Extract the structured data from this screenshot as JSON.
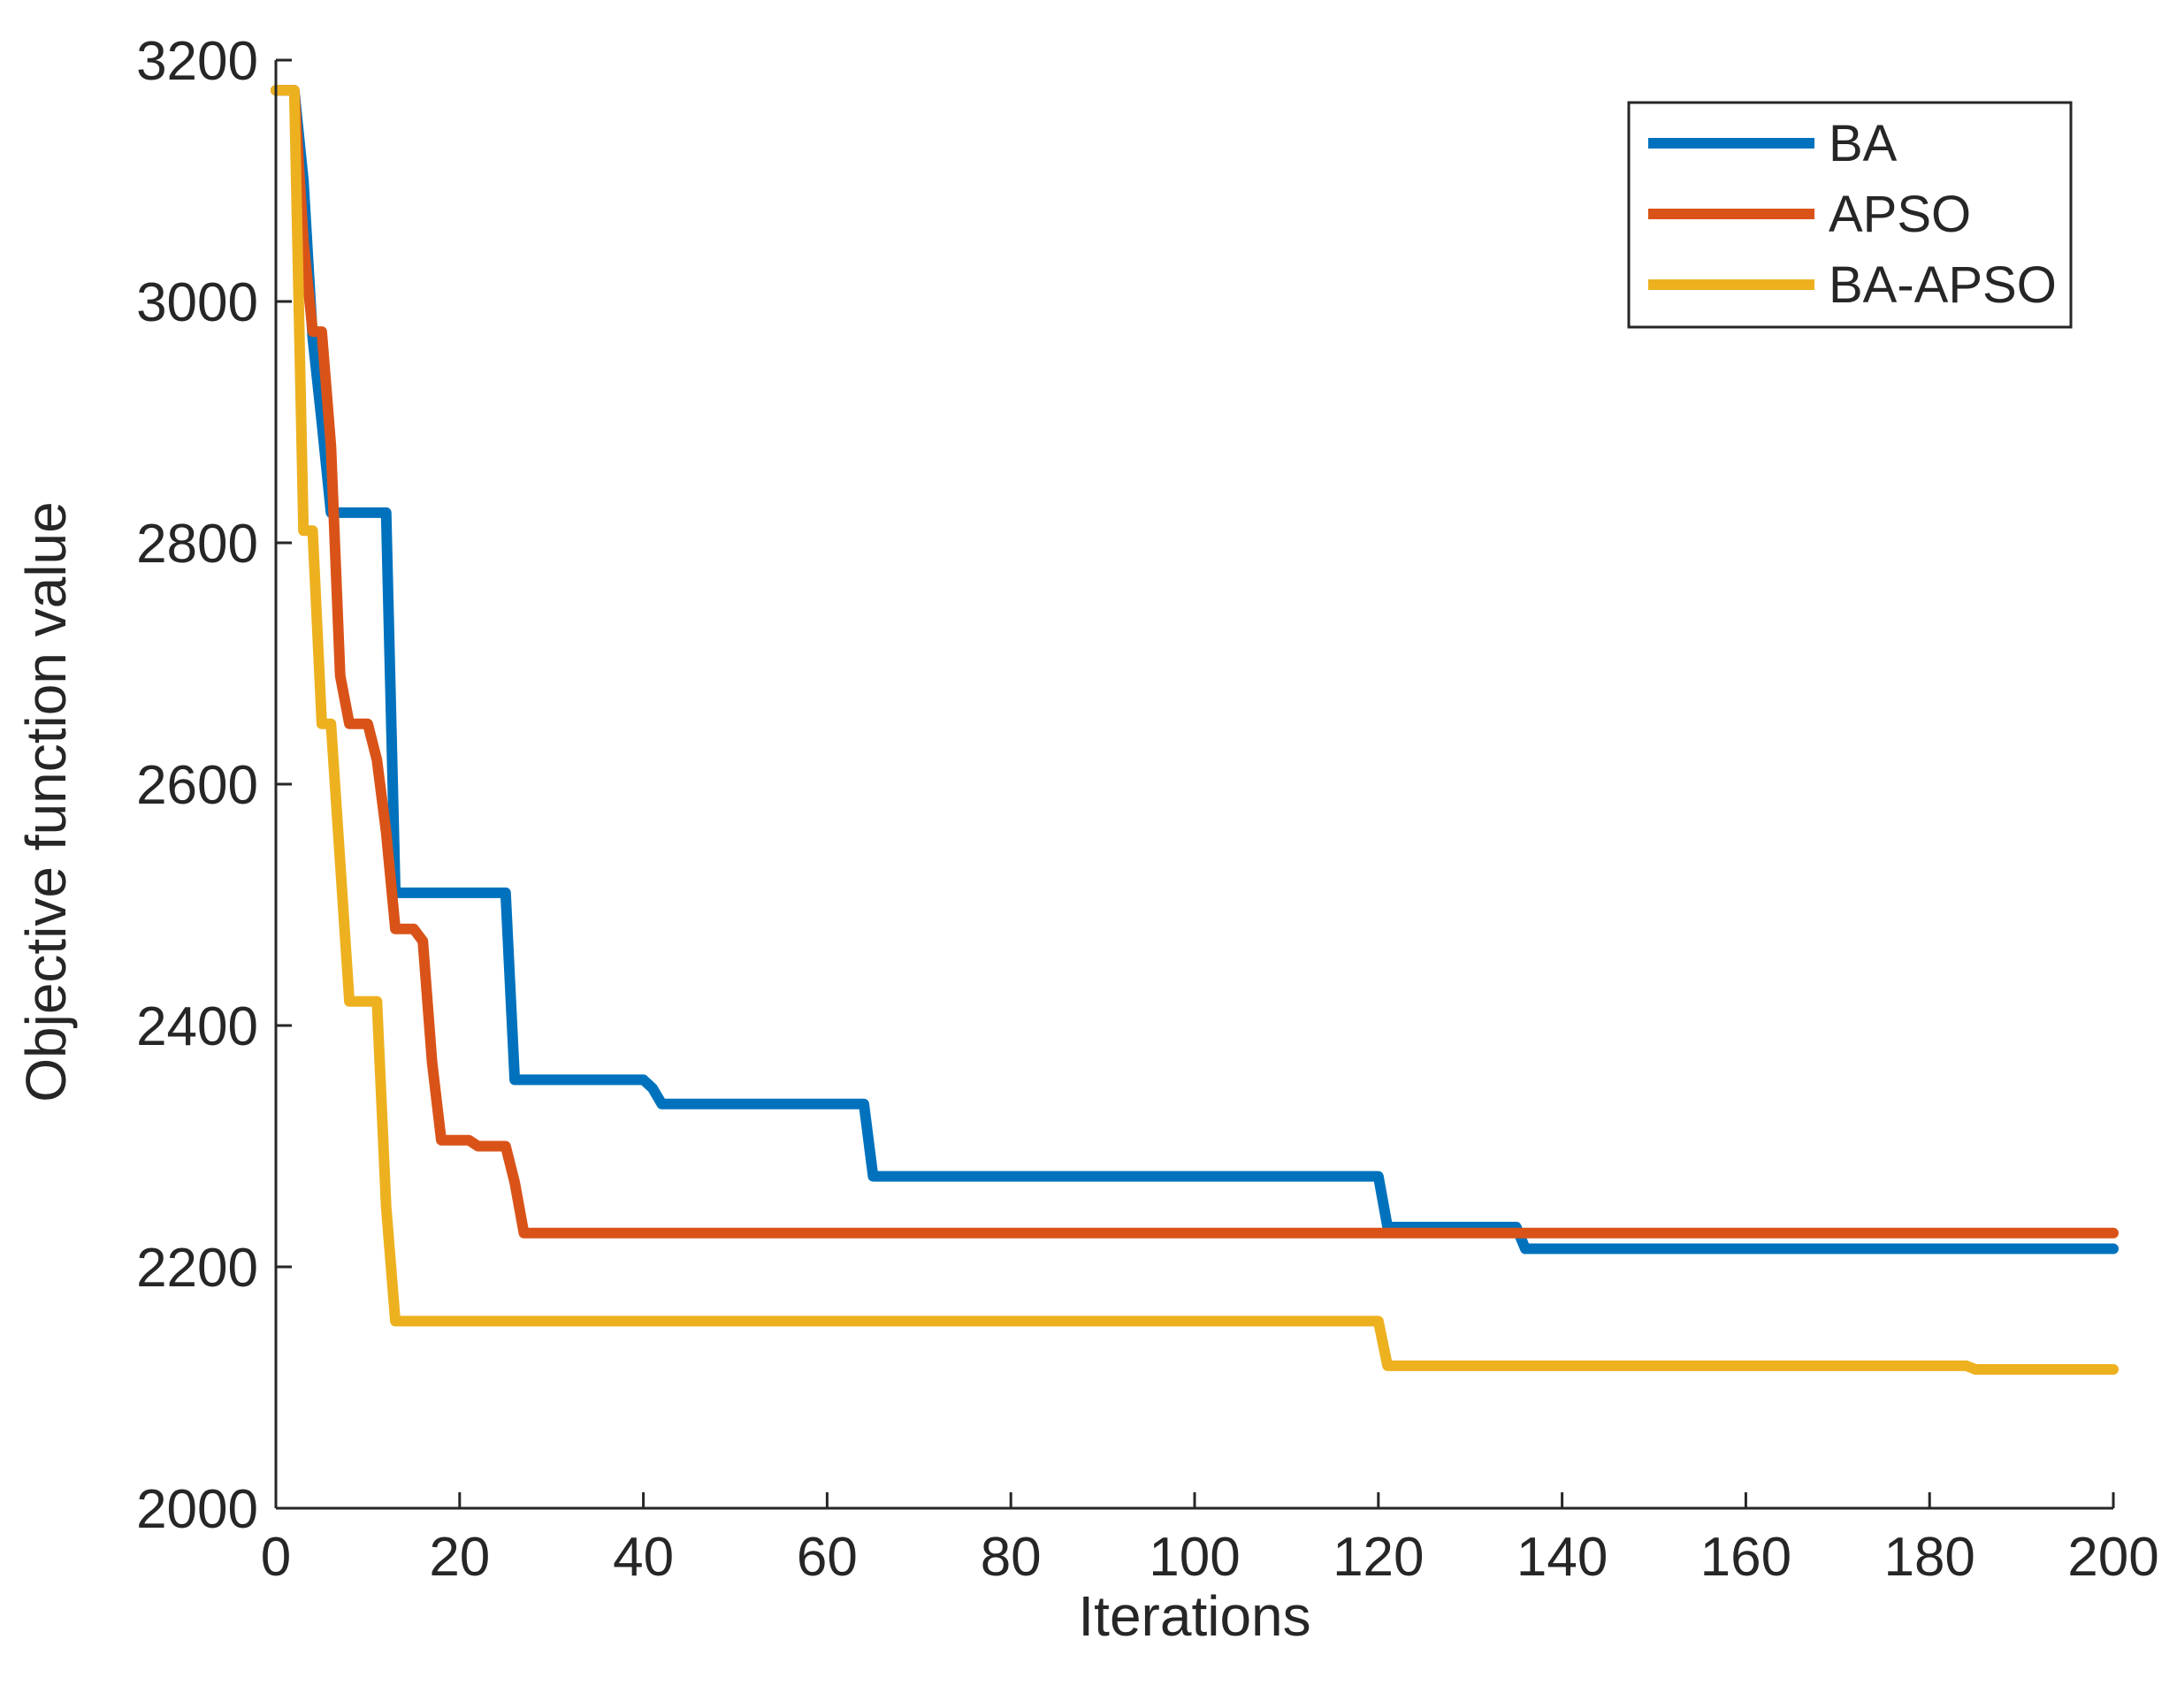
{
  "chart_data": {
    "type": "line",
    "title": "",
    "xlabel": "Iterations",
    "ylabel": "Objective function value",
    "xlim": [
      0,
      200
    ],
    "ylim": [
      2000,
      3200
    ],
    "xticks": [
      0,
      20,
      40,
      60,
      80,
      100,
      120,
      140,
      160,
      180,
      200
    ],
    "yticks": [
      2000,
      2200,
      2400,
      2600,
      2800,
      3000,
      3200
    ],
    "xtick_labels": [
      "0",
      "20",
      "40",
      "60",
      "80",
      "100",
      "120",
      "140",
      "160",
      "180",
      "200"
    ],
    "ytick_labels": [
      "2000",
      "2200",
      "2400",
      "2600",
      "2800",
      "3000",
      "3200"
    ],
    "grid": false,
    "legend_position": "top-right",
    "series": [
      {
        "name": "BA",
        "color": "#0072BD",
        "x": [
          0,
          2,
          3,
          4,
          5,
          6,
          12,
          13,
          25,
          26,
          40,
          41,
          42,
          64,
          65,
          120,
          121,
          135,
          136,
          200
        ],
        "y": [
          3175,
          3175,
          3100,
          2970,
          2900,
          2825,
          2825,
          2510,
          2510,
          2355,
          2355,
          2348,
          2335,
          2335,
          2275,
          2275,
          2233,
          2233,
          2215,
          2215
        ]
      },
      {
        "name": "APSO",
        "color": "#D95319",
        "x": [
          0,
          2,
          3,
          4,
          5,
          6,
          7,
          8,
          10,
          11,
          12,
          13,
          15,
          16,
          17,
          18,
          21,
          22,
          25,
          26,
          27,
          200
        ],
        "y": [
          3175,
          3175,
          3050,
          2975,
          2975,
          2880,
          2690,
          2650,
          2650,
          2620,
          2560,
          2480,
          2480,
          2470,
          2370,
          2305,
          2305,
          2300,
          2300,
          2270,
          2228,
          2228
        ]
      },
      {
        "name": "BA-APSO",
        "color": "#EDB120",
        "x": [
          0,
          2,
          3,
          4,
          5,
          6,
          8,
          9,
          11,
          12,
          13,
          120,
          121,
          184,
          185,
          200
        ],
        "y": [
          3175,
          3175,
          2810,
          2810,
          2650,
          2650,
          2420,
          2420,
          2420,
          2250,
          2155,
          2155,
          2118,
          2118,
          2115,
          2115
        ]
      }
    ]
  }
}
